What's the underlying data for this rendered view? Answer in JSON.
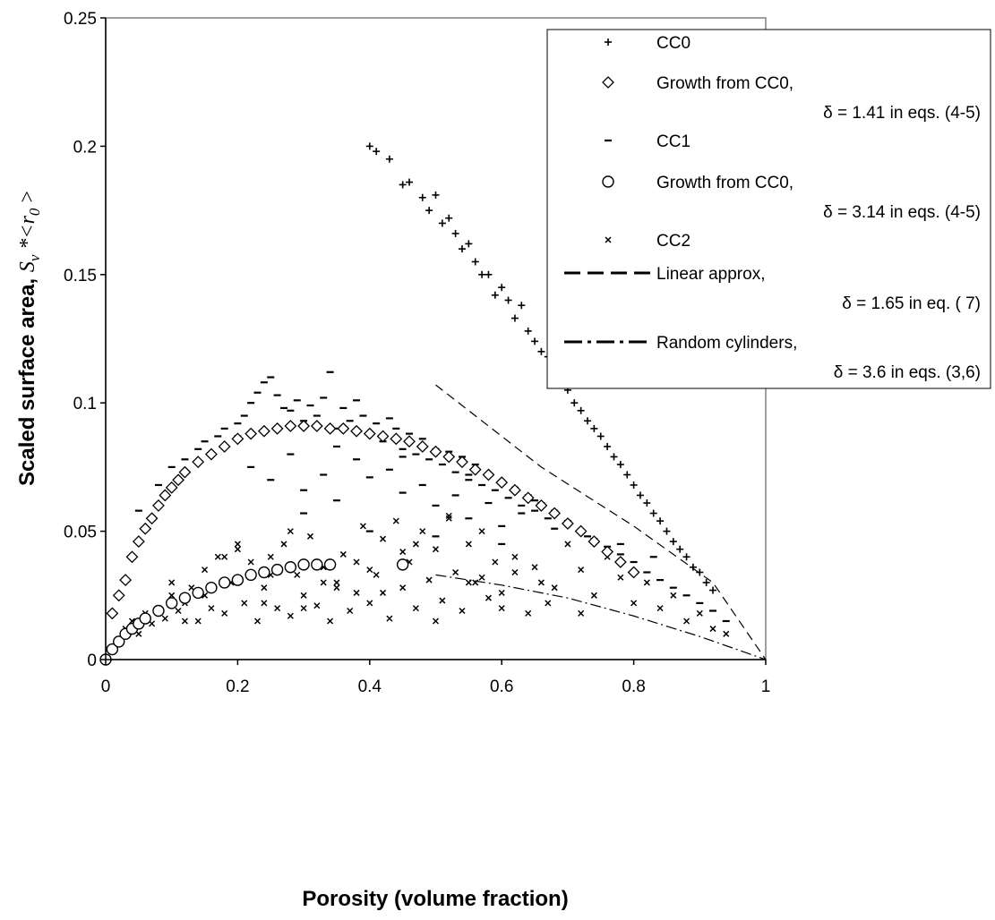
{
  "chart_data": {
    "type": "scatter",
    "xlabel": "Porosity (volume fraction)",
    "ylabel_prefix": "Scaled surface area, ",
    "ylabel_S": "S",
    "ylabel_v": "v",
    "ylabel_star_r": " *<r",
    "ylabel_0": "0",
    "ylabel_suffix": " >",
    "xlim": [
      0,
      1
    ],
    "ylim": [
      0,
      0.25
    ],
    "x_ticks": [
      "0",
      "0.2",
      "0.4",
      "0.6",
      "0.8",
      "1"
    ],
    "y_ticks": [
      "0",
      "0.05",
      "0.1",
      "0.15",
      "0.2",
      "0.25"
    ],
    "legend_position": "top-right",
    "series": [
      {
        "name": "CC0",
        "marker": "+",
        "x": [
          0.4,
          0.41,
          0.43,
          0.45,
          0.46,
          0.48,
          0.49,
          0.5,
          0.51,
          0.52,
          0.53,
          0.54,
          0.55,
          0.56,
          0.57,
          0.58,
          0.59,
          0.6,
          0.61,
          0.62,
          0.63,
          0.64,
          0.65,
          0.66,
          0.67,
          0.68,
          0.69,
          0.7,
          0.71,
          0.72,
          0.73,
          0.74,
          0.75,
          0.76,
          0.77,
          0.78,
          0.79,
          0.8,
          0.81,
          0.82,
          0.83,
          0.84,
          0.85,
          0.86,
          0.87,
          0.88,
          0.89,
          0.9,
          0.91,
          0.92
        ],
        "y": [
          0.2,
          0.198,
          0.195,
          0.185,
          0.186,
          0.18,
          0.175,
          0.181,
          0.17,
          0.172,
          0.166,
          0.16,
          0.162,
          0.155,
          0.15,
          0.15,
          0.142,
          0.145,
          0.14,
          0.133,
          0.138,
          0.128,
          0.124,
          0.12,
          0.118,
          0.112,
          0.108,
          0.105,
          0.1,
          0.097,
          0.093,
          0.09,
          0.087,
          0.083,
          0.079,
          0.076,
          0.072,
          0.068,
          0.064,
          0.061,
          0.057,
          0.054,
          0.05,
          0.046,
          0.043,
          0.04,
          0.036,
          0.034,
          0.03,
          0.027
        ]
      },
      {
        "name": "Growth from CC0, δ = 1.41 in eqs. (4-5)",
        "marker": "diamond",
        "x": [
          0.01,
          0.02,
          0.03,
          0.04,
          0.05,
          0.06,
          0.07,
          0.08,
          0.09,
          0.1,
          0.11,
          0.12,
          0.14,
          0.16,
          0.18,
          0.2,
          0.22,
          0.24,
          0.26,
          0.28,
          0.3,
          0.32,
          0.34,
          0.36,
          0.38,
          0.4,
          0.42,
          0.44,
          0.46,
          0.48,
          0.5,
          0.52,
          0.54,
          0.56,
          0.58,
          0.6,
          0.62,
          0.64,
          0.66,
          0.68,
          0.7,
          0.72,
          0.74,
          0.76,
          0.78,
          0.8
        ],
        "y": [
          0.018,
          0.025,
          0.031,
          0.04,
          0.046,
          0.051,
          0.055,
          0.06,
          0.064,
          0.067,
          0.07,
          0.073,
          0.077,
          0.08,
          0.083,
          0.086,
          0.088,
          0.089,
          0.09,
          0.091,
          0.091,
          0.091,
          0.09,
          0.09,
          0.089,
          0.088,
          0.087,
          0.086,
          0.085,
          0.083,
          0.081,
          0.079,
          0.077,
          0.074,
          0.072,
          0.069,
          0.066,
          0.063,
          0.06,
          0.057,
          0.053,
          0.05,
          0.046,
          0.042,
          0.038,
          0.034
        ]
      },
      {
        "name": "CC1",
        "marker": "dash",
        "x": [
          0.05,
          0.08,
          0.1,
          0.12,
          0.14,
          0.15,
          0.17,
          0.18,
          0.2,
          0.21,
          0.22,
          0.23,
          0.24,
          0.25,
          0.26,
          0.27,
          0.28,
          0.29,
          0.3,
          0.31,
          0.32,
          0.33,
          0.34,
          0.35,
          0.36,
          0.37,
          0.38,
          0.39,
          0.4,
          0.41,
          0.42,
          0.43,
          0.44,
          0.45,
          0.46,
          0.47,
          0.48,
          0.49,
          0.5,
          0.51,
          0.52,
          0.53,
          0.54,
          0.55,
          0.56,
          0.57,
          0.58,
          0.59,
          0.6,
          0.61,
          0.62,
          0.63,
          0.64,
          0.65,
          0.66,
          0.67,
          0.68,
          0.7,
          0.72,
          0.74,
          0.76,
          0.78,
          0.8,
          0.82,
          0.84,
          0.86,
          0.88,
          0.9,
          0.92,
          0.94,
          0.25,
          0.3,
          0.35,
          0.4,
          0.45,
          0.5,
          0.55,
          0.6,
          0.22,
          0.28,
          0.33,
          0.38,
          0.43,
          0.48,
          0.53,
          0.58,
          0.63,
          0.68,
          0.73,
          0.78,
          0.83,
          0.3,
          0.4,
          0.5,
          0.6,
          0.2,
          0.35,
          0.45,
          0.55,
          0.65
        ],
        "y": [
          0.058,
          0.068,
          0.075,
          0.078,
          0.082,
          0.085,
          0.087,
          0.09,
          0.092,
          0.095,
          0.1,
          0.104,
          0.108,
          0.11,
          0.103,
          0.098,
          0.097,
          0.101,
          0.093,
          0.099,
          0.095,
          0.102,
          0.112,
          0.09,
          0.098,
          0.093,
          0.101,
          0.095,
          0.088,
          0.092,
          0.085,
          0.094,
          0.09,
          0.082,
          0.088,
          0.08,
          0.086,
          0.078,
          0.082,
          0.076,
          0.081,
          0.073,
          0.079,
          0.07,
          0.076,
          0.068,
          0.072,
          0.066,
          0.069,
          0.063,
          0.067,
          0.06,
          0.064,
          0.058,
          0.061,
          0.055,
          0.058,
          0.054,
          0.05,
          0.047,
          0.044,
          0.041,
          0.038,
          0.034,
          0.031,
          0.028,
          0.025,
          0.022,
          0.019,
          0.015,
          0.07,
          0.066,
          0.062,
          0.071,
          0.065,
          0.06,
          0.055,
          0.052,
          0.075,
          0.08,
          0.072,
          0.078,
          0.074,
          0.068,
          0.064,
          0.061,
          0.057,
          0.051,
          0.048,
          0.045,
          0.04,
          0.057,
          0.05,
          0.048,
          0.045,
          0.087,
          0.083,
          0.079,
          0.072,
          0.062
        ]
      },
      {
        "name": "Growth from CC0, δ = 3.14 in eqs. (4-5)",
        "marker": "circle",
        "x": [
          0.0,
          0.01,
          0.02,
          0.03,
          0.04,
          0.05,
          0.06,
          0.08,
          0.1,
          0.12,
          0.14,
          0.16,
          0.18,
          0.2,
          0.22,
          0.24,
          0.26,
          0.28,
          0.3,
          0.32,
          0.34,
          0.45
        ],
        "y": [
          0.0,
          0.004,
          0.007,
          0.01,
          0.012,
          0.014,
          0.016,
          0.019,
          0.022,
          0.024,
          0.026,
          0.028,
          0.03,
          0.031,
          0.033,
          0.034,
          0.035,
          0.036,
          0.037,
          0.037,
          0.037,
          0.037
        ]
      },
      {
        "name": "CC2",
        "marker": "x",
        "x": [
          0.02,
          0.03,
          0.04,
          0.05,
          0.06,
          0.07,
          0.08,
          0.09,
          0.1,
          0.11,
          0.12,
          0.13,
          0.14,
          0.15,
          0.16,
          0.17,
          0.18,
          0.19,
          0.2,
          0.21,
          0.22,
          0.23,
          0.24,
          0.25,
          0.26,
          0.27,
          0.28,
          0.29,
          0.3,
          0.31,
          0.32,
          0.33,
          0.34,
          0.35,
          0.36,
          0.37,
          0.38,
          0.39,
          0.4,
          0.41,
          0.42,
          0.43,
          0.44,
          0.45,
          0.46,
          0.47,
          0.48,
          0.49,
          0.5,
          0.51,
          0.52,
          0.53,
          0.54,
          0.55,
          0.56,
          0.57,
          0.58,
          0.59,
          0.6,
          0.62,
          0.64,
          0.66,
          0.68,
          0.7,
          0.72,
          0.74,
          0.76,
          0.78,
          0.8,
          0.82,
          0.84,
          0.86,
          0.88,
          0.9,
          0.92,
          0.94,
          0.1,
          0.15,
          0.2,
          0.25,
          0.3,
          0.35,
          0.4,
          0.45,
          0.5,
          0.55,
          0.6,
          0.65,
          0.12,
          0.18,
          0.24,
          0.28,
          0.33,
          0.38,
          0.42,
          0.47,
          0.52,
          0.57,
          0.62,
          0.67,
          0.72
        ],
        "y": [
          0.008,
          0.012,
          0.015,
          0.01,
          0.018,
          0.014,
          0.02,
          0.016,
          0.025,
          0.019,
          0.022,
          0.028,
          0.015,
          0.035,
          0.02,
          0.04,
          0.018,
          0.03,
          0.043,
          0.022,
          0.038,
          0.015,
          0.028,
          0.04,
          0.02,
          0.045,
          0.017,
          0.033,
          0.025,
          0.048,
          0.021,
          0.036,
          0.015,
          0.03,
          0.041,
          0.019,
          0.026,
          0.052,
          0.022,
          0.033,
          0.047,
          0.016,
          0.054,
          0.028,
          0.038,
          0.02,
          0.05,
          0.031,
          0.043,
          0.023,
          0.056,
          0.034,
          0.019,
          0.045,
          0.03,
          0.05,
          0.024,
          0.038,
          0.026,
          0.034,
          0.018,
          0.03,
          0.028,
          0.045,
          0.035,
          0.025,
          0.04,
          0.032,
          0.022,
          0.03,
          0.02,
          0.025,
          0.015,
          0.018,
          0.012,
          0.01,
          0.03,
          0.025,
          0.045,
          0.033,
          0.02,
          0.028,
          0.035,
          0.042,
          0.015,
          0.03,
          0.02,
          0.036,
          0.015,
          0.04,
          0.022,
          0.05,
          0.03,
          0.038,
          0.026,
          0.045,
          0.055,
          0.032,
          0.04,
          0.022,
          0.018
        ]
      },
      {
        "name": "Linear approx, δ = 1.65 in eq. ( 7)",
        "line": "dashed",
        "x": [
          0.5,
          0.66,
          0.8,
          0.92,
          1.0
        ],
        "y": [
          0.107,
          0.075,
          0.052,
          0.03,
          0.0
        ]
      },
      {
        "name": "Random cylinders, δ = 3.6 in eqs. (3,6)",
        "line": "dashdot",
        "x": [
          0.5,
          0.6,
          0.7,
          0.8,
          0.9,
          1.0
        ],
        "y": [
          0.033,
          0.029,
          0.024,
          0.017,
          0.009,
          0.0
        ]
      }
    ],
    "legend": [
      {
        "label": "CC0",
        "label2": ""
      },
      {
        "label": "Growth from CC0,",
        "label2": "δ = 1.41 in eqs. (4-5)"
      },
      {
        "label": "CC1",
        "label2": ""
      },
      {
        "label": "Growth from CC0,",
        "label2": "δ = 3.14 in eqs. (4-5)"
      },
      {
        "label": "CC2",
        "label2": ""
      },
      {
        "label": "Linear approx,",
        "label2": "δ = 1.65 in eq. ( 7)"
      },
      {
        "label": "Random cylinders,",
        "label2": "δ = 3.6 in eqs. (3,6)"
      }
    ]
  }
}
